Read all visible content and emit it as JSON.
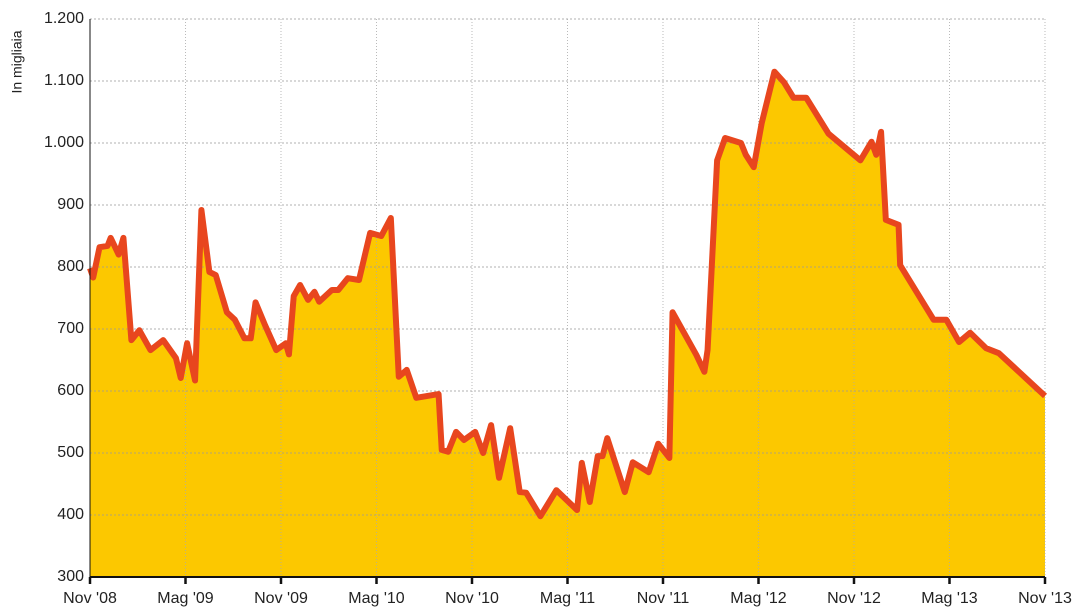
{
  "chart_data": {
    "type": "area",
    "y_label": "In migliaia",
    "x": [
      0,
      0.2,
      0.6,
      1.1,
      1.3,
      1.8,
      2.1,
      2.6,
      3.1,
      3.8,
      4.6,
      5.4,
      5.7,
      6.1,
      6.6,
      7.0,
      7.5,
      7.9,
      8.6,
      9.1,
      9.7,
      10.1,
      10.4,
      11.0,
      11.7,
      12.3,
      12.5,
      12.8,
      13.2,
      13.7,
      14.1,
      14.4,
      15.2,
      15.6,
      16.2,
      16.9,
      17.6,
      18.3,
      18.9,
      19.4,
      19.9,
      20.5,
      21.9,
      22.1,
      22.5,
      23.0,
      23.5,
      24.2,
      24.7,
      25.2,
      25.7,
      26.4,
      27.0,
      27.4,
      28.3,
      29.3,
      30.6,
      30.9,
      31.4,
      31.9,
      32.2,
      32.5,
      32.9,
      33.6,
      34.1,
      35.1,
      35.7,
      36.4,
      36.6,
      38.1,
      38.6,
      38.8,
      39.4,
      39.9,
      40.9,
      41.2,
      41.7,
      42.2,
      43.0,
      43.6,
      44.2,
      45.0,
      46.4,
      48.4,
      49.1,
      49.4,
      49.7,
      50.0,
      50.8,
      50.9,
      53.0,
      53.8,
      54.6,
      55.3,
      56.3,
      57.1,
      60
    ],
    "values": [
      798,
      783,
      832,
      834,
      847,
      820,
      847,
      682,
      698,
      666,
      682,
      653,
      621,
      677,
      617,
      892,
      792,
      787,
      727,
      715,
      685,
      685,
      743,
      706,
      666,
      677,
      659,
      753,
      771,
      747,
      760,
      744,
      763,
      763,
      782,
      779,
      855,
      850,
      879,
      623,
      634,
      589,
      595,
      505,
      502,
      534,
      521,
      534,
      500,
      545,
      460,
      540,
      437,
      436,
      398,
      440,
      408,
      484,
      421,
      495,
      495,
      524,
      492,
      437,
      485,
      469,
      515,
      492,
      727,
      658,
      631,
      666,
      972,
      1008,
      1000,
      981,
      961,
      1032,
      1115,
      1098,
      1073,
      1073,
      1015,
      972,
      1002,
      981,
      1018,
      876,
      868,
      803,
      715,
      715,
      679,
      694,
      669,
      661,
      592
    ],
    "color": "#fcc800",
    "line_color": "#e8461e",
    "xlim": [
      0,
      60
    ],
    "xticks": [
      {
        "value": 0,
        "label": "Nov '08"
      },
      {
        "value": 6,
        "label": "Mag '09"
      },
      {
        "value": 12,
        "label": "Nov '09"
      },
      {
        "value": 18,
        "label": "Mag '10"
      },
      {
        "value": 24,
        "label": "Nov '10"
      },
      {
        "value": 30,
        "label": "Mag '11"
      },
      {
        "value": 36,
        "label": "Nov '11"
      },
      {
        "value": 42,
        "label": "Mag '12"
      },
      {
        "value": 48,
        "label": "Nov '12"
      },
      {
        "value": 54,
        "label": "Mag '13"
      },
      {
        "value": 60,
        "label": "Nov '13"
      }
    ],
    "ylim": [
      300,
      1200
    ],
    "yticks": [
      300,
      400,
      500,
      600,
      700,
      800,
      900,
      {
        "value": 1000,
        "label": "1.000"
      },
      {
        "value": 1100,
        "label": "1.100"
      },
      {
        "value": 1200,
        "label": "1.200"
      }
    ],
    "grid": true
  }
}
